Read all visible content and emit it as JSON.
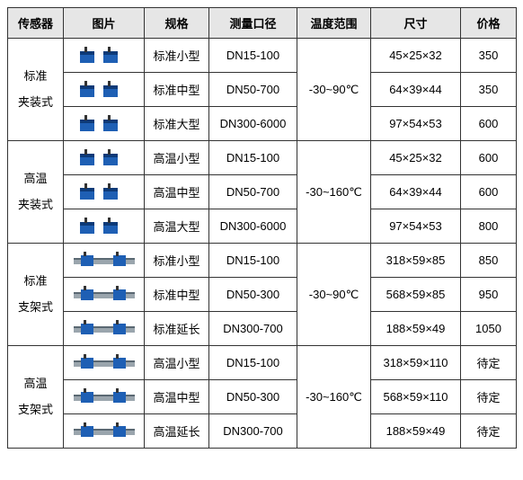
{
  "headers": {
    "sensor": "传感器",
    "image": "图片",
    "spec": "规格",
    "caliber": "测量口径",
    "temp": "温度范围",
    "size": "尺寸",
    "price": "价格"
  },
  "icon_colors": {
    "clamp_body": "#1e5fb4",
    "clamp_dark": "#0d3a78",
    "bracket_bar": "#1e5fb4",
    "bracket_silver": "#9aa5ad",
    "bracket_dark": "#5a6872"
  },
  "groups": [
    {
      "sensor_line1": "标准",
      "sensor_line2": "夹装式",
      "icon": "clamp",
      "temp": "-30~90℃",
      "rows": [
        {
          "spec": "标准小型",
          "caliber": "DN15-100",
          "size": "45×25×32",
          "price": "350"
        },
        {
          "spec": "标准中型",
          "caliber": "DN50-700",
          "size": "64×39×44",
          "price": "350"
        },
        {
          "spec": "标准大型",
          "caliber": "DN300-6000",
          "size": "97×54×53",
          "price": "600"
        }
      ]
    },
    {
      "sensor_line1": "高温",
      "sensor_line2": "夹装式",
      "icon": "clamp",
      "temp": "-30~160℃",
      "rows": [
        {
          "spec": "高温小型",
          "caliber": "DN15-100",
          "size": "45×25×32",
          "price": "600"
        },
        {
          "spec": "高温中型",
          "caliber": "DN50-700",
          "size": "64×39×44",
          "price": "600"
        },
        {
          "spec": "高温大型",
          "caliber": "DN300-6000",
          "size": "97×54×53",
          "price": "800"
        }
      ]
    },
    {
      "sensor_line1": "标准",
      "sensor_line2": "支架式",
      "icon": "bracket",
      "temp": "-30~90℃",
      "rows": [
        {
          "spec": "标准小型",
          "caliber": "DN15-100",
          "size": "318×59×85",
          "price": "850"
        },
        {
          "spec": "标准中型",
          "caliber": "DN50-300",
          "size": "568×59×85",
          "price": "950"
        },
        {
          "spec": "标准延长",
          "caliber": "DN300-700",
          "size": "188×59×49",
          "price": "1050"
        }
      ]
    },
    {
      "sensor_line1": "高温",
      "sensor_line2": "支架式",
      "icon": "bracket",
      "temp": "-30~160℃",
      "rows": [
        {
          "spec": "高温小型",
          "caliber": "DN15-100",
          "size": "318×59×110",
          "price": "待定"
        },
        {
          "spec": "高温中型",
          "caliber": "DN50-300",
          "size": "568×59×110",
          "price": "待定"
        },
        {
          "spec": "高温延长",
          "caliber": "DN300-700",
          "size": "188×59×49",
          "price": "待定"
        }
      ]
    }
  ]
}
